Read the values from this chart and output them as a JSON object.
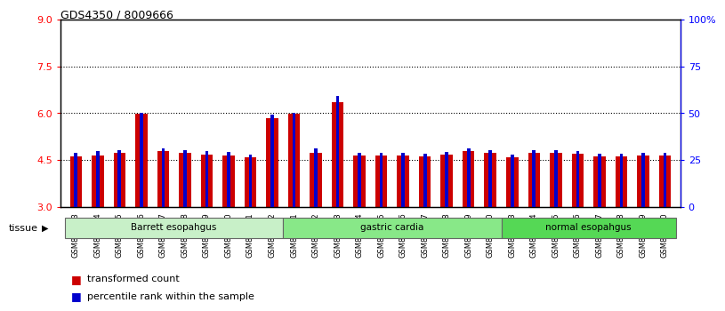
{
  "title": "GDS4350 / 8009666",
  "samples": [
    "GSM851983",
    "GSM851984",
    "GSM851985",
    "GSM851986",
    "GSM851987",
    "GSM851988",
    "GSM851989",
    "GSM851990",
    "GSM851991",
    "GSM851992",
    "GSM852001",
    "GSM852002",
    "GSM852003",
    "GSM852004",
    "GSM852005",
    "GSM852006",
    "GSM852007",
    "GSM852008",
    "GSM852009",
    "GSM852010",
    "GSM851993",
    "GSM851994",
    "GSM851995",
    "GSM851996",
    "GSM851997",
    "GSM851998",
    "GSM851999",
    "GSM852000"
  ],
  "red_values": [
    4.62,
    4.65,
    4.72,
    5.97,
    4.78,
    4.72,
    4.68,
    4.65,
    4.58,
    5.85,
    5.97,
    4.73,
    6.35,
    4.65,
    4.65,
    4.63,
    4.62,
    4.67,
    4.78,
    4.72,
    4.59,
    4.72,
    4.72,
    4.7,
    4.62,
    4.61,
    4.65,
    4.65
  ],
  "blue_values": [
    4.72,
    4.77,
    4.82,
    6.02,
    4.87,
    4.82,
    4.77,
    4.75,
    4.68,
    5.95,
    6.02,
    4.88,
    6.55,
    4.73,
    4.73,
    4.72,
    4.69,
    4.75,
    4.88,
    4.8,
    4.67,
    4.8,
    4.8,
    4.78,
    4.7,
    4.7,
    4.73,
    4.73
  ],
  "groups": [
    {
      "label": "Barrett esopahgus",
      "start": 0,
      "end": 10,
      "color": "#c8f0c8"
    },
    {
      "label": "gastric cardia",
      "start": 10,
      "end": 20,
      "color": "#88e888"
    },
    {
      "label": "normal esopahgus",
      "start": 20,
      "end": 28,
      "color": "#55d855"
    }
  ],
  "ylim_left": [
    3,
    9
  ],
  "ylim_right": [
    0,
    100
  ],
  "yticks_left": [
    3,
    4.5,
    6,
    7.5,
    9
  ],
  "yticks_right": [
    0,
    25,
    50,
    75,
    100
  ],
  "red_color": "#cc0000",
  "blue_color": "#0000cc",
  "bar_base": 3.0,
  "red_bar_width": 0.55,
  "blue_bar_width": 0.15
}
